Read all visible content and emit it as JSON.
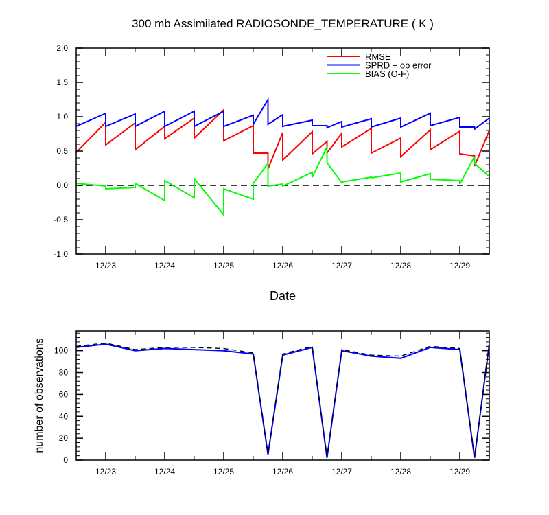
{
  "colors": {
    "rmse": "#ff0000",
    "sprd": "#0000ff",
    "bias": "#00ff00",
    "zero_line": "#000000",
    "nobs_assim": "#0000ff",
    "nobs_total": "#000000"
  },
  "chart_data": [
    {
      "type": "line",
      "title": "300 mb Assimilated RADIOSONDE_TEMPERATURE ( K )",
      "xlabel": "Date",
      "ylabel": "",
      "x_units": "days (Dec 22 + fraction)",
      "xlim": [
        22.5,
        29.5
      ],
      "ylim": [
        -1.0,
        2.0
      ],
      "x_tick_values": [
        23,
        24,
        25,
        26,
        27,
        28,
        29
      ],
      "x_tick_labels": [
        "12/23",
        "12/24",
        "12/25",
        "12/26",
        "12/27",
        "12/28",
        "12/29"
      ],
      "y_tick_values": [
        -1.0,
        -0.5,
        0.0,
        0.5,
        1.0,
        1.5,
        2.0
      ],
      "y_tick_labels": [
        "-1.0",
        "-0.5",
        "0.0",
        "0.5",
        "1.0",
        "1.5",
        "2.0"
      ],
      "legend_position": "top-right",
      "reference_line": {
        "y": 0.0,
        "style": "dashed"
      },
      "series": [
        {
          "name": "RMSE",
          "color": "#ff0000",
          "points": [
            [
              22.5,
              0.48
            ],
            [
              23.0,
              0.92
            ],
            [
              23.0,
              0.59
            ],
            [
              23.5,
              0.91
            ],
            [
              23.5,
              0.52
            ],
            [
              24.0,
              0.86
            ],
            [
              24.0,
              0.68
            ],
            [
              24.5,
              0.98
            ],
            [
              24.5,
              0.69
            ],
            [
              25.0,
              1.1
            ],
            [
              25.0,
              0.65
            ],
            [
              25.5,
              0.87
            ],
            [
              25.5,
              0.47
            ],
            [
              25.75,
              0.47
            ],
            [
              25.75,
              0.24
            ],
            [
              26.0,
              0.77
            ],
            [
              26.0,
              0.37
            ],
            [
              26.5,
              0.78
            ],
            [
              26.5,
              0.46
            ],
            [
              26.75,
              0.64
            ],
            [
              26.75,
              0.47
            ],
            [
              27.0,
              0.76
            ],
            [
              27.0,
              0.56
            ],
            [
              27.5,
              0.83
            ],
            [
              27.5,
              0.47
            ],
            [
              28.0,
              0.69
            ],
            [
              28.0,
              0.42
            ],
            [
              28.5,
              0.81
            ],
            [
              28.5,
              0.52
            ],
            [
              29.0,
              0.79
            ],
            [
              29.0,
              0.46
            ],
            [
              29.25,
              0.43
            ],
            [
              29.25,
              0.28
            ],
            [
              29.5,
              0.8
            ]
          ]
        },
        {
          "name": "SPRD + ob error",
          "color": "#0000ff",
          "points": [
            [
              22.5,
              0.86
            ],
            [
              23.0,
              1.05
            ],
            [
              23.0,
              0.86
            ],
            [
              23.5,
              1.04
            ],
            [
              23.5,
              0.86
            ],
            [
              24.0,
              1.08
            ],
            [
              24.0,
              0.86
            ],
            [
              24.5,
              1.08
            ],
            [
              24.5,
              0.86
            ],
            [
              25.0,
              1.08
            ],
            [
              25.0,
              0.86
            ],
            [
              25.5,
              1.02
            ],
            [
              25.5,
              0.89
            ],
            [
              25.75,
              1.25
            ],
            [
              25.75,
              0.89
            ],
            [
              26.0,
              1.03
            ],
            [
              26.0,
              0.86
            ],
            [
              26.5,
              0.95
            ],
            [
              26.5,
              0.87
            ],
            [
              26.75,
              0.87
            ],
            [
              26.75,
              0.84
            ],
            [
              27.0,
              0.93
            ],
            [
              27.0,
              0.85
            ],
            [
              27.5,
              0.97
            ],
            [
              27.5,
              0.85
            ],
            [
              28.0,
              0.98
            ],
            [
              28.0,
              0.85
            ],
            [
              28.5,
              1.05
            ],
            [
              28.5,
              0.87
            ],
            [
              29.0,
              0.99
            ],
            [
              29.0,
              0.85
            ],
            [
              29.25,
              0.85
            ],
            [
              29.25,
              0.82
            ],
            [
              29.5,
              0.98
            ]
          ]
        },
        {
          "name": "BIAS (O-F)",
          "color": "#00ff00",
          "points": [
            [
              22.5,
              0.03
            ],
            [
              23.0,
              -0.01
            ],
            [
              23.0,
              -0.05
            ],
            [
              23.5,
              -0.03
            ],
            [
              23.5,
              0.03
            ],
            [
              24.0,
              -0.22
            ],
            [
              24.0,
              0.07
            ],
            [
              24.5,
              -0.18
            ],
            [
              24.5,
              0.1
            ],
            [
              25.0,
              -0.43
            ],
            [
              25.0,
              -0.05
            ],
            [
              25.5,
              -0.2
            ],
            [
              25.5,
              0.03
            ],
            [
              25.75,
              0.32
            ],
            [
              25.75,
              -0.01
            ],
            [
              26.0,
              0.02
            ],
            [
              26.0,
              -0.01
            ],
            [
              26.5,
              0.19
            ],
            [
              26.5,
              0.12
            ],
            [
              26.75,
              0.56
            ],
            [
              26.75,
              0.33
            ],
            [
              27.0,
              0.04
            ],
            [
              27.0,
              0.05
            ],
            [
              27.5,
              0.12
            ],
            [
              27.5,
              0.11
            ],
            [
              28.0,
              0.18
            ],
            [
              28.0,
              0.05
            ],
            [
              28.5,
              0.17
            ],
            [
              28.5,
              0.09
            ],
            [
              29.0,
              0.07
            ],
            [
              29.0,
              0.02
            ],
            [
              29.25,
              0.42
            ],
            [
              29.25,
              0.32
            ],
            [
              29.5,
              0.13
            ]
          ]
        }
      ]
    },
    {
      "type": "line",
      "title": "",
      "xlabel": "",
      "ylabel": "number of observations",
      "xlim": [
        22.5,
        29.5
      ],
      "ylim": [
        0,
        118
      ],
      "x_tick_values": [
        23,
        24,
        25,
        26,
        27,
        28,
        29
      ],
      "x_tick_labels": [
        "12/23",
        "12/24",
        "12/25",
        "12/26",
        "12/27",
        "12/28",
        "12/29"
      ],
      "y_tick_values": [
        0,
        20,
        40,
        60,
        80,
        100
      ],
      "y_tick_labels": [
        "0",
        "20",
        "40",
        "60",
        "80",
        "100"
      ],
      "series": [
        {
          "color": "#0000ff",
          "style": "solid",
          "points": [
            [
              22.5,
              103
            ],
            [
              23.0,
              106
            ],
            [
              23.5,
              100
            ],
            [
              24.0,
              102
            ],
            [
              24.5,
              101
            ],
            [
              25.0,
              100
            ],
            [
              25.5,
              97
            ],
            [
              25.75,
              5
            ],
            [
              26.0,
              96
            ],
            [
              26.5,
              103
            ],
            [
              26.75,
              2
            ],
            [
              27.0,
              100
            ],
            [
              27.5,
              95
            ],
            [
              28.0,
              93
            ],
            [
              28.5,
              103
            ],
            [
              29.0,
              101
            ],
            [
              29.25,
              2
            ],
            [
              29.5,
              106
            ]
          ]
        },
        {
          "color": "#000000",
          "style": "dashed",
          "points": [
            [
              22.5,
              104
            ],
            [
              23.0,
              107
            ],
            [
              23.5,
              101
            ],
            [
              24.0,
              103
            ],
            [
              24.5,
              103
            ],
            [
              25.0,
              102
            ],
            [
              25.5,
              98
            ],
            [
              25.75,
              6
            ],
            [
              26.0,
              97
            ],
            [
              26.5,
              104
            ],
            [
              26.75,
              3
            ],
            [
              27.0,
              101
            ],
            [
              27.5,
              96
            ],
            [
              28.0,
              95
            ],
            [
              28.5,
              104
            ],
            [
              29.0,
              102
            ],
            [
              29.25,
              3
            ],
            [
              29.5,
              107
            ]
          ]
        }
      ]
    }
  ]
}
